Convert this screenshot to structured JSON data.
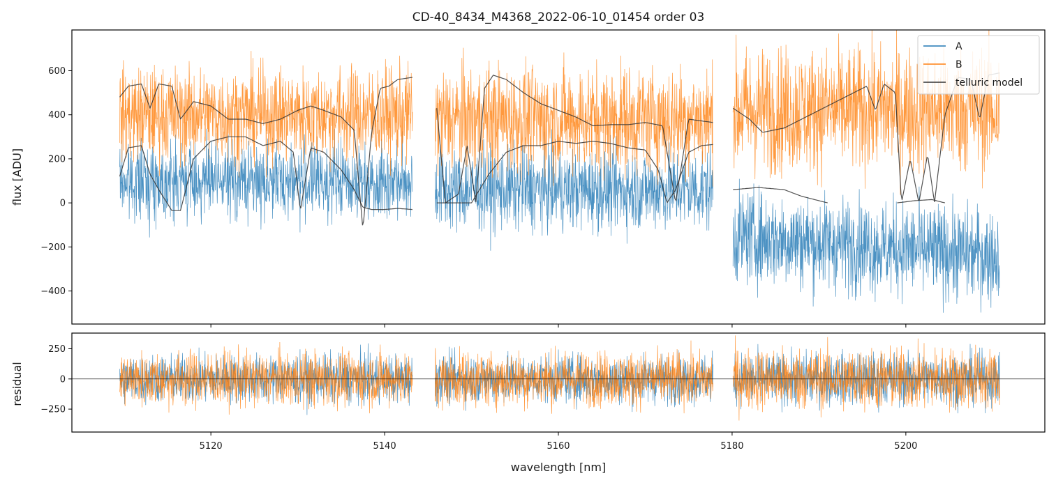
{
  "chart_data": [
    {
      "type": "line",
      "panel": "top",
      "title": "CD-40_8434_M4368_2022-06-10_01454  order 03",
      "xlabel": "",
      "ylabel": "flux [ADU]",
      "xlim": [
        5104,
        5216
      ],
      "ylim": [
        -550,
        785
      ],
      "yticks": [
        -400,
        -200,
        0,
        200,
        400,
        600
      ],
      "ytick_labels": [
        "−400",
        "−200",
        "0",
        "200",
        "400",
        "600"
      ],
      "xticks": [
        5120,
        5140,
        5160,
        5180,
        5200
      ],
      "legend": {
        "position": "top-right",
        "entries": [
          {
            "label": "A",
            "color": "#1f77b4"
          },
          {
            "label": "B",
            "color": "#ff7f0e"
          },
          {
            "label": "telluric model",
            "color": "#333333"
          }
        ]
      },
      "segments": [
        {
          "x_range": [
            5109.5,
            5143.2
          ],
          "A_base": 100,
          "A_noise": 120,
          "B_base": 400,
          "B_noise": 150
        },
        {
          "x_range": [
            5145.8,
            5177.8
          ],
          "A_base": 60,
          "A_noise": 130,
          "B_base": 380,
          "B_noise": 170
        },
        {
          "x_range": [
            5180.1,
            5210.8
          ],
          "A_base": -150,
          "A_noise": 150,
          "B_base": 420,
          "B_noise": 200
        }
      ],
      "series": [
        {
          "name": "telluric model (A)",
          "color": "#333333",
          "x": [
            5109.5,
            5110.5,
            5112,
            5113,
            5114,
            5115.5,
            5116.5,
            5118,
            5120,
            5122,
            5124,
            5126,
            5128,
            5129.5,
            5130.3,
            5131.5,
            5133,
            5135,
            5136.5,
            5137.5,
            5138.5,
            5140,
            5141.5,
            5143.2
          ],
          "y": [
            120,
            250,
            260,
            130,
            60,
            -35,
            -35,
            200,
            280,
            300,
            300,
            260,
            280,
            230,
            -35,
            250,
            230,
            150,
            60,
            -20,
            -30,
            -30,
            -25,
            -30
          ]
        },
        {
          "name": "telluric model (B)",
          "color": "#333333",
          "x": [
            5109.5,
            5110.5,
            5112,
            5113,
            5114,
            5115.5,
            5116.5,
            5118,
            5120,
            5122,
            5124,
            5126,
            5128,
            5130,
            5131.5,
            5133,
            5135,
            5136.5,
            5137.5,
            5138.5,
            5139.5,
            5140.5,
            5141.5,
            5143.2
          ],
          "y": [
            480,
            530,
            540,
            430,
            540,
            530,
            380,
            460,
            440,
            380,
            380,
            360,
            380,
            420,
            440,
            420,
            390,
            330,
            -120,
            320,
            520,
            530,
            560,
            570
          ]
        },
        {
          "name": "telluric model (A)",
          "color": "#333333",
          "x": [
            5146,
            5148,
            5150,
            5152,
            5154,
            5156,
            5158,
            5160,
            5162,
            5164,
            5166,
            5168,
            5170,
            5171.5,
            5172.5,
            5173.5,
            5175,
            5176.5,
            5177.8
          ],
          "y": [
            0,
            0,
            0,
            130,
            230,
            260,
            260,
            280,
            270,
            280,
            270,
            250,
            240,
            150,
            0,
            60,
            230,
            260,
            265
          ]
        },
        {
          "name": "telluric model (B)",
          "color": "#333333",
          "x": [
            5146,
            5147,
            5148.5,
            5149.5,
            5150.5,
            5151.5,
            5152.5,
            5154,
            5156,
            5158,
            5160,
            5162,
            5164,
            5166,
            5168,
            5170,
            5172,
            5173.5,
            5175,
            5177.8
          ],
          "y": [
            430,
            0,
            40,
            260,
            0,
            520,
            580,
            560,
            500,
            450,
            420,
            390,
            350,
            355,
            355,
            365,
            350,
            0,
            380,
            365
          ]
        },
        {
          "name": "telluric model (A)",
          "color": "#333333",
          "x": [
            5180.1,
            5183,
            5186,
            5188,
            5191
          ],
          "y": [
            60,
            70,
            60,
            30,
            0
          ]
        },
        {
          "name": "telluric model (A)",
          "color": "#333333",
          "x": [
            5199,
            5201,
            5203,
            5204.5
          ],
          "y": [
            0,
            10,
            15,
            0
          ]
        },
        {
          "name": "telluric model (B)",
          "color": "#333333",
          "x": [
            5180.1,
            5182,
            5183.5,
            5186,
            5188,
            5190,
            5192,
            5194,
            5195.5,
            5196.5,
            5197.5,
            5198.8,
            5199.5,
            5200.5,
            5201.5,
            5202.5,
            5203.3,
            5204.5,
            5206,
            5207.5,
            5208.5,
            5209.5,
            5210.8
          ],
          "y": [
            430,
            380,
            320,
            340,
            380,
            420,
            460,
            500,
            530,
            420,
            540,
            500,
            0,
            200,
            0,
            220,
            0,
            400,
            570,
            560,
            380,
            580,
            590
          ]
        }
      ]
    },
    {
      "type": "line",
      "panel": "bottom",
      "title": "",
      "xlabel": "wavelength [nm]",
      "ylabel": "residual",
      "xlim": [
        5104,
        5216
      ],
      "ylim": [
        -440,
        380
      ],
      "yticks": [
        -250,
        0,
        250
      ],
      "ytick_labels": [
        "−250",
        "0",
        "250"
      ],
      "xticks": [
        5120,
        5140,
        5160,
        5180,
        5200
      ],
      "xtick_labels": [
        "5120",
        "5140",
        "5160",
        "5180",
        "5200"
      ],
      "reference_line": 0,
      "segments": [
        {
          "x_range": [
            5109.5,
            5143.2
          ],
          "A_noise": 140,
          "B_noise": 160
        },
        {
          "x_range": [
            5145.8,
            5177.8
          ],
          "A_noise": 140,
          "B_noise": 160
        },
        {
          "x_range": [
            5180.1,
            5210.8
          ],
          "A_noise": 150,
          "B_noise": 180
        }
      ]
    }
  ]
}
